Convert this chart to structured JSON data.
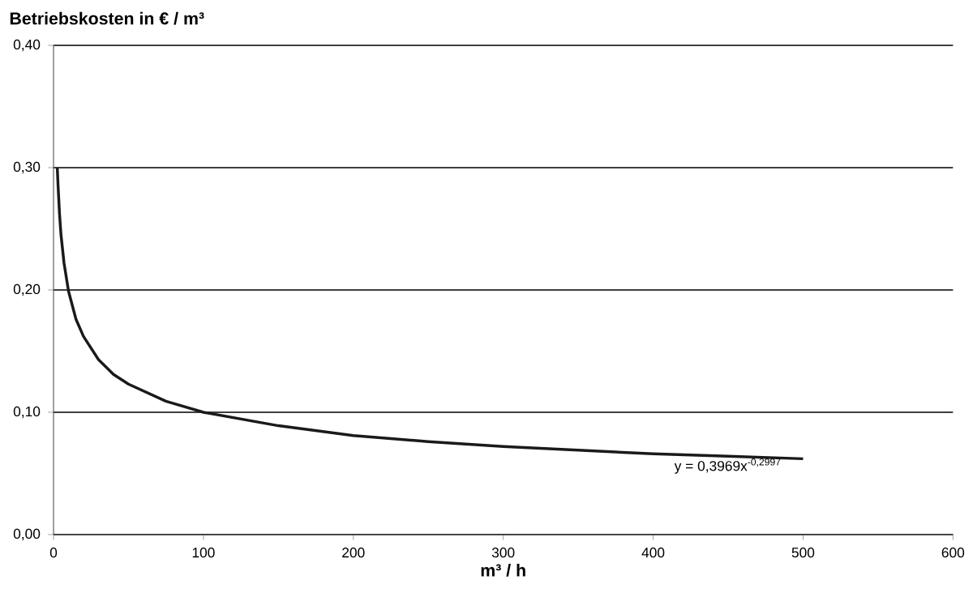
{
  "chart_data": {
    "type": "line",
    "xlabel": "m³ / h",
    "ylabel": "Betriebskosten in € / m³",
    "x": [
      2.5,
      3,
      4,
      5,
      7,
      10,
      15,
      20,
      30,
      40,
      50,
      75,
      100,
      150,
      200,
      250,
      300,
      350,
      400,
      450,
      500
    ],
    "series": [
      {
        "color": "#1a1a1a",
        "values": [
          0.3,
          0.286,
          0.262,
          0.245,
          0.222,
          0.199,
          0.176,
          0.162,
          0.143,
          0.131,
          0.123,
          0.109,
          0.1,
          0.089,
          0.081,
          0.076,
          0.072,
          0.069,
          0.066,
          0.064,
          0.062
        ]
      }
    ],
    "xlim": [
      0,
      600
    ],
    "xticks": [
      0,
      100,
      200,
      300,
      400,
      500,
      600
    ],
    "ylim": [
      0,
      0.4
    ],
    "yticks": [
      {
        "value": 0,
        "label": "0,00"
      },
      {
        "value": 0.1,
        "label": "0,10"
      },
      {
        "value": 0.2,
        "label": "0,20"
      },
      {
        "value": 0.3,
        "label": "0,30"
      },
      {
        "value": 0.4,
        "label": "0,40"
      }
    ],
    "grid": "y",
    "marker": "none",
    "line_style": "solid",
    "annotations": [
      "y = 0,3969x$^{-0,2997}$"
    ]
  }
}
